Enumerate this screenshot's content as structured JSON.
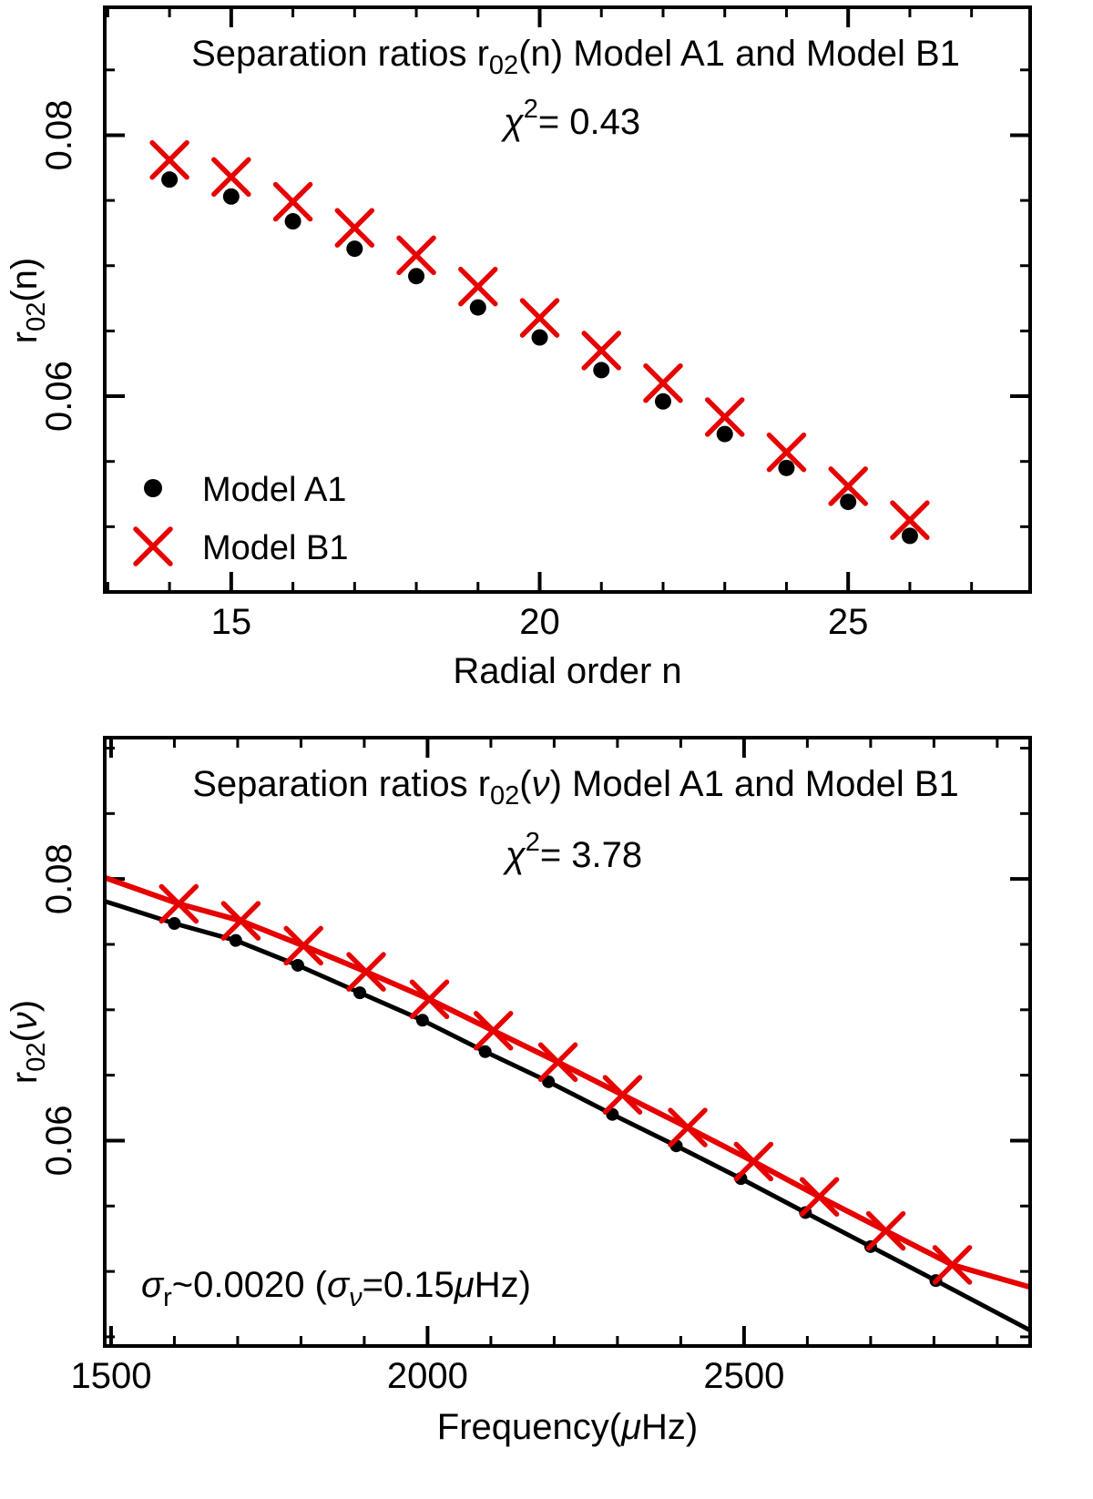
{
  "colors": {
    "red": "#e60000",
    "black": "#000000",
    "background": "#ffffff"
  },
  "panel1": {
    "title": {
      "t1": "Separation ratios r",
      "sub": "02",
      "t2": "(n) Model A1 and Model B1"
    },
    "chi": {
      "sym": "χ",
      "sup": "2",
      "rest": "= 0.43"
    },
    "legend": [
      {
        "marker": "dot",
        "label": "Model A1"
      },
      {
        "marker": "cross",
        "label": "Model B1"
      }
    ],
    "xlabel": "Radial order n",
    "ylabel": {
      "t1": "r",
      "sub": "02",
      "t2": "(n)"
    }
  },
  "panel2": {
    "title": {
      "t1": "Separation ratios r",
      "sub": "02",
      "t2": "(",
      "nu": "ν",
      "t3": ") Model A1 and Model B1"
    },
    "chi": {
      "sym": "χ",
      "sup": "2",
      "rest": "= 3.78"
    },
    "sigma": {
      "s1": "σ",
      "sub1": "r",
      "s2": "~0.0020 (",
      "sig2": "σ",
      "sub2": "ν",
      "s3": "=0.15",
      "mu": "μ",
      "s4": "Hz)"
    },
    "xlabel": {
      "t1": "Frequency(",
      "mu": "μ",
      "t2": "Hz)"
    },
    "ylabel": {
      "t1": "r",
      "sub": "02",
      "t2": "(",
      "nu": "ν",
      "t3": ")"
    }
  },
  "chart_data": [
    {
      "id": "r02-vs-n",
      "type": "scatter",
      "title": "Separation ratios r02(n) Model A1 and Model B1",
      "annotation": "χ² = 0.43",
      "xlabel": "Radial order n",
      "ylabel": "r02(n)",
      "xlim": [
        12.95,
        27.95
      ],
      "ylim": [
        0.045,
        0.0898
      ],
      "x_major_ticks": [
        15,
        20,
        25
      ],
      "x_major_labels": [
        "15",
        "20",
        "25"
      ],
      "x_minor_step": 1,
      "y_major_ticks": [
        0.06,
        0.08
      ],
      "y_major_labels": [
        "0.06",
        "0.08"
      ],
      "y_minor_step": 0.005,
      "grid": false,
      "legend_position": "bottom-left",
      "series": [
        {
          "name": "Model A1",
          "marker": "dot",
          "marker_size": 9,
          "color": "#000000",
          "x": [
            14,
            15,
            16,
            17,
            18,
            19,
            20,
            21,
            22,
            23,
            24,
            25,
            26
          ],
          "y": [
            0.0766,
            0.0753,
            0.0734,
            0.0713,
            0.0692,
            0.0668,
            0.0645,
            0.062,
            0.0596,
            0.0571,
            0.0545,
            0.0519,
            0.0493
          ]
        },
        {
          "name": "Model B1",
          "marker": "cross",
          "marker_size": 19,
          "marker_stroke": 5.5,
          "color": "#e60000",
          "x": [
            14,
            15,
            16,
            17,
            18,
            19,
            20,
            21,
            22,
            23,
            24,
            25,
            26
          ],
          "y": [
            0.0781,
            0.0768,
            0.0749,
            0.0729,
            0.0708,
            0.0684,
            0.066,
            0.0635,
            0.061,
            0.0584,
            0.0557,
            0.0531,
            0.0505
          ]
        }
      ]
    },
    {
      "id": "r02-vs-freq",
      "type": "line",
      "title": "Separation ratios r02(ν) Model A1 and Model B1",
      "annotation": "χ² = 3.78",
      "note": "σr~0.0020 (σν=0.15μHz)",
      "xlabel": "Frequency(μHz)",
      "ylabel": "r02(ν)",
      "xlim": [
        1490,
        2952
      ],
      "ylim": [
        0.0443,
        0.0908
      ],
      "x_major_ticks": [
        1500,
        2000,
        2500
      ],
      "x_major_labels": [
        "1500",
        "2000",
        "2500"
      ],
      "x_minor_step": 100,
      "y_major_ticks": [
        0.06,
        0.08
      ],
      "y_major_labels": [
        "0.06",
        "0.08"
      ],
      "y_minor_step": 0.005,
      "grid": false,
      "series": [
        {
          "name": "Model A1",
          "marker": "dot",
          "marker_size": 7,
          "color": "#000000",
          "line_width": 5,
          "line_start": [
            1490,
            0.0783
          ],
          "line_end": [
            2952,
            0.0455
          ],
          "x": [
            1600,
            1697,
            1795,
            1893,
            1992,
            2091,
            2191,
            2292,
            2393,
            2495,
            2597,
            2700,
            2803
          ],
          "y": [
            0.0766,
            0.0753,
            0.0734,
            0.0713,
            0.0692,
            0.0668,
            0.0645,
            0.062,
            0.0596,
            0.0571,
            0.0545,
            0.0519,
            0.0493
          ]
        },
        {
          "name": "Model B1",
          "marker": "cross",
          "marker_size": 19,
          "marker_stroke": 5.5,
          "color": "#e60000",
          "line_width": 6,
          "line_start": [
            1490,
            0.0801
          ],
          "line_end": [
            2952,
            0.0488
          ],
          "x": [
            1607,
            1705,
            1804,
            1903,
            2003,
            2104,
            2206,
            2308,
            2411,
            2515,
            2619,
            2724,
            2829
          ],
          "y": [
            0.0781,
            0.0768,
            0.0749,
            0.0729,
            0.0708,
            0.0684,
            0.066,
            0.0635,
            0.061,
            0.0584,
            0.0557,
            0.0531,
            0.0505
          ]
        }
      ]
    }
  ]
}
